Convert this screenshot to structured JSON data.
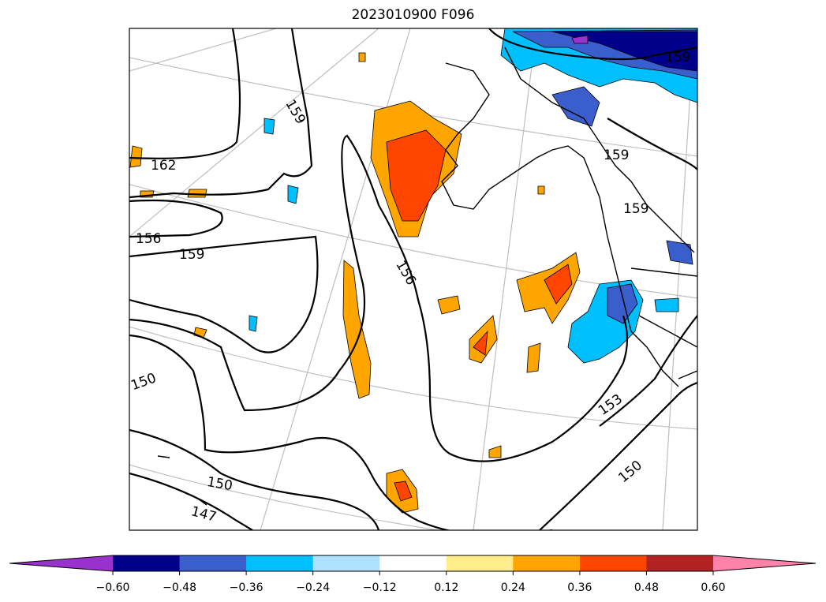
{
  "title": "2023010900 F096",
  "chart_data": {
    "type": "contour map",
    "title": "2023010900 F096",
    "colorbar": {
      "levels": [
        -0.6,
        -0.48,
        -0.36,
        -0.24,
        -0.12,
        0.12,
        0.24,
        0.36,
        0.48,
        0.6
      ],
      "tick_labels": [
        "−0.60",
        "−0.48",
        "−0.36",
        "−0.24",
        "−0.12",
        "0.12",
        "0.24",
        "0.36",
        "0.48",
        "0.60"
      ],
      "colors": [
        "#9932cc",
        "#00008b",
        "#3a5fcd",
        "#00bfff",
        "#b0e2ff",
        "#ffffff",
        "#ffec8b",
        "#ffa500",
        "#ff4500",
        "#b22222",
        "#ff82ab"
      ],
      "extend": "both"
    },
    "contour_labels": [
      "159",
      "162",
      "156",
      "159",
      "150",
      "156",
      "150",
      "147",
      "153",
      "150",
      "159",
      "159",
      "159"
    ]
  }
}
